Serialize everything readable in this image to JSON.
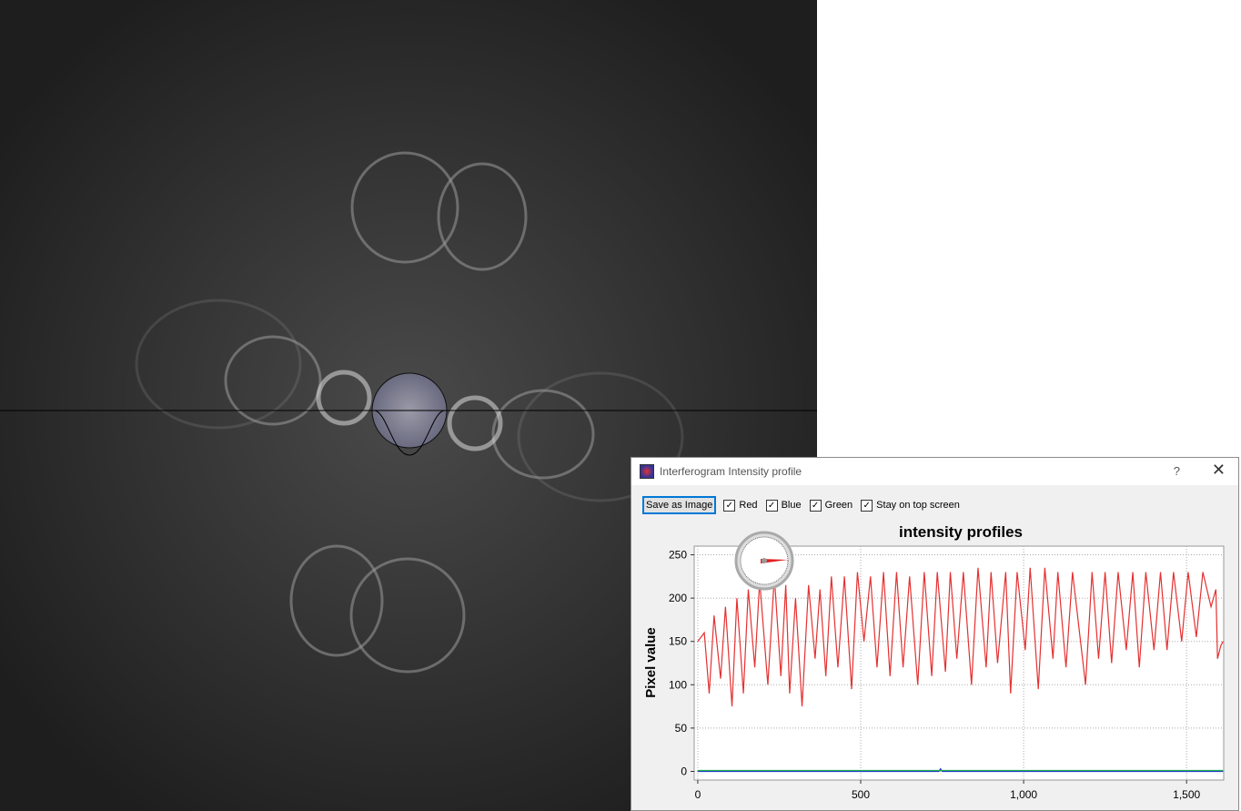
{
  "window": {
    "title": "Interferogram Intensity profile",
    "help": "?"
  },
  "toolbar": {
    "save_button": "Save as Image",
    "checkboxes": [
      {
        "label": "Red",
        "checked": true
      },
      {
        "label": "Blue",
        "checked": true
      },
      {
        "label": "Green",
        "checked": true
      },
      {
        "label": "Stay on top screen",
        "checked": true
      }
    ]
  },
  "chart_data": {
    "type": "line",
    "title": "intensity profiles",
    "y_label": "Pixel value",
    "xlim": [
      -11,
      1614
    ],
    "ylim": [
      -10,
      260
    ],
    "xticks": [
      0,
      500,
      {
        "value": 1000,
        "label": "1,000"
      },
      {
        "value": 1500,
        "label": "1,500"
      }
    ],
    "yticks": [
      0,
      50,
      100,
      150,
      200,
      250
    ],
    "grid": true,
    "series": [
      {
        "name": "Red",
        "color": "#e53030",
        "x": [
          0,
          20,
          35,
          50,
          70,
          85,
          105,
          120,
          140,
          155,
          175,
          190,
          215,
          235,
          255,
          270,
          282,
          300,
          320,
          340,
          360,
          375,
          393,
          410,
          430,
          450,
          472,
          490,
          510,
          530,
          550,
          570,
          590,
          610,
          630,
          650,
          675,
          695,
          718,
          735,
          760,
          775,
          795,
          815,
          840,
          860,
          885,
          900,
          920,
          945,
          960,
          980,
          1005,
          1020,
          1045,
          1065,
          1090,
          1105,
          1130,
          1150,
          1190,
          1210,
          1230,
          1250,
          1270,
          1290,
          1315,
          1335,
          1355,
          1375,
          1400,
          1420,
          1440,
          1460,
          1485,
          1505,
          1530,
          1550,
          1575,
          1590,
          1595,
          1605,
          1612
        ],
        "values": [
          150,
          160,
          90,
          180,
          107,
          190,
          75,
          200,
          90,
          210,
          120,
          220,
          100,
          225,
          110,
          215,
          90,
          200,
          75,
          215,
          130,
          210,
          110,
          225,
          120,
          225,
          95,
          230,
          150,
          225,
          120,
          230,
          110,
          230,
          120,
          225,
          100,
          230,
          110,
          230,
          115,
          230,
          130,
          230,
          100,
          235,
          120,
          230,
          125,
          230,
          90,
          230,
          140,
          235,
          95,
          235,
          130,
          230,
          120,
          230,
          100,
          230,
          130,
          230,
          125,
          230,
          140,
          230,
          120,
          230,
          140,
          230,
          140,
          230,
          150,
          230,
          155,
          230,
          190,
          210,
          130,
          145,
          150
        ]
      },
      {
        "name": "Blue",
        "color": "#2030d0",
        "x": [
          0,
          740,
          745,
          750,
          1612
        ],
        "values": [
          0,
          0,
          3,
          0,
          0
        ]
      },
      {
        "name": "Green",
        "color": "#20b050",
        "x": [
          0,
          1612
        ],
        "values": [
          1,
          1
        ]
      }
    ]
  }
}
